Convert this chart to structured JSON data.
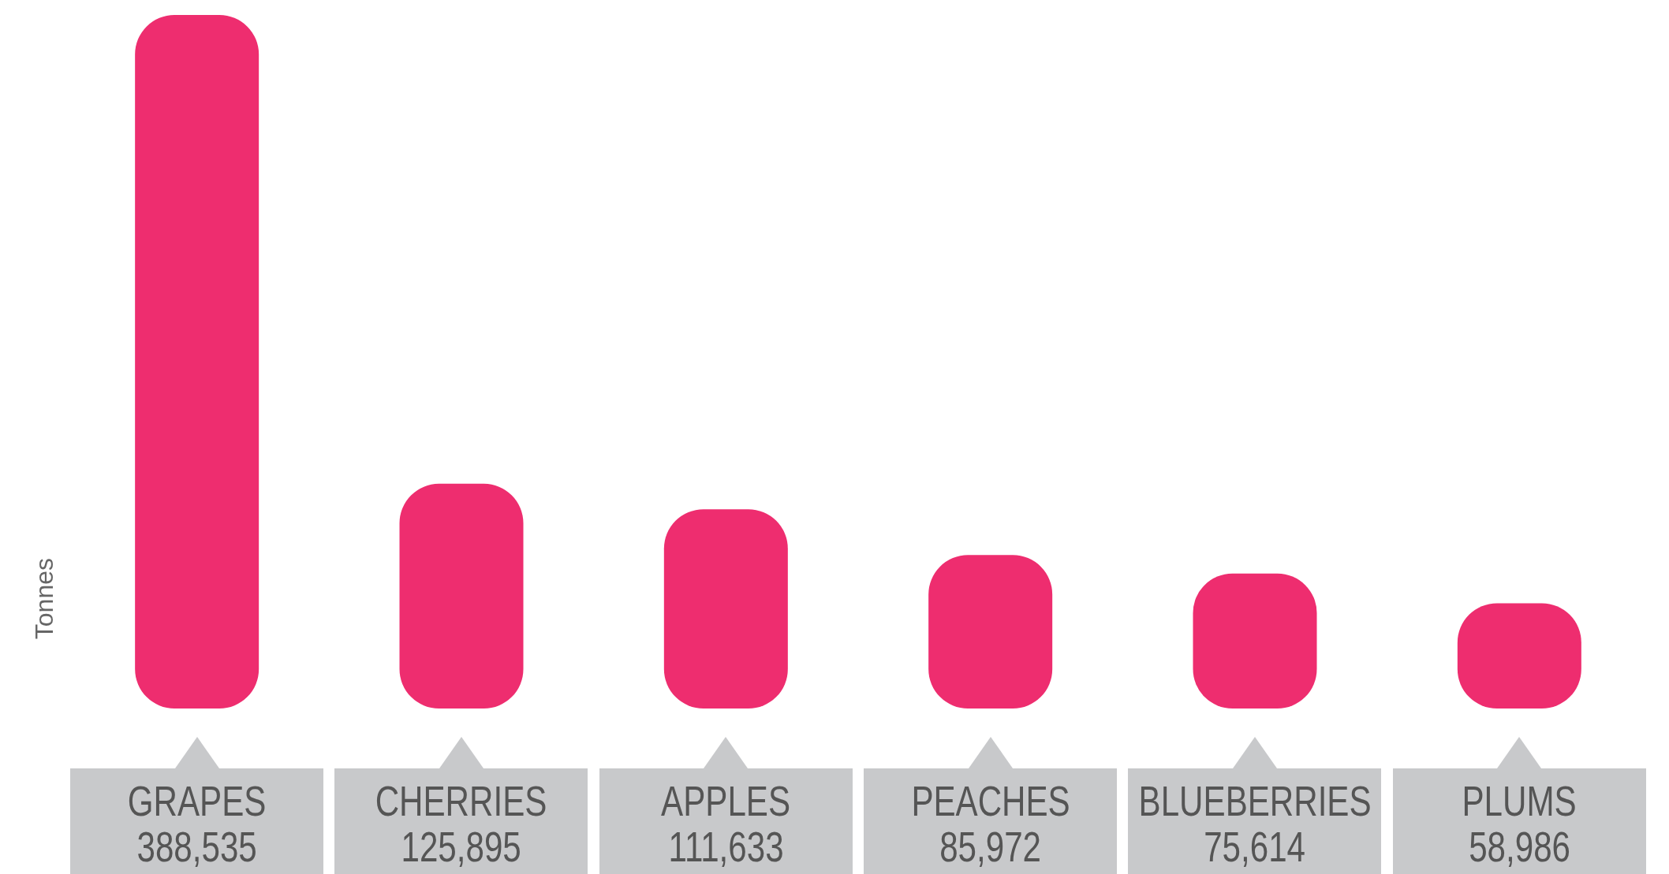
{
  "chart_data": {
    "type": "bar",
    "ylabel": "Tonnes",
    "categories": [
      "GRAPES",
      "CHERRIES",
      "APPLES",
      "PEACHES",
      "BLUEBERRIES",
      "PLUMS"
    ],
    "values": [
      388535,
      125895,
      111633,
      85972,
      75614,
      58986
    ],
    "color": "#ee2d6f",
    "value_labels": [
      "388,535",
      "125,895",
      "111,633",
      "85,972",
      "75,614",
      "58,986"
    ]
  }
}
